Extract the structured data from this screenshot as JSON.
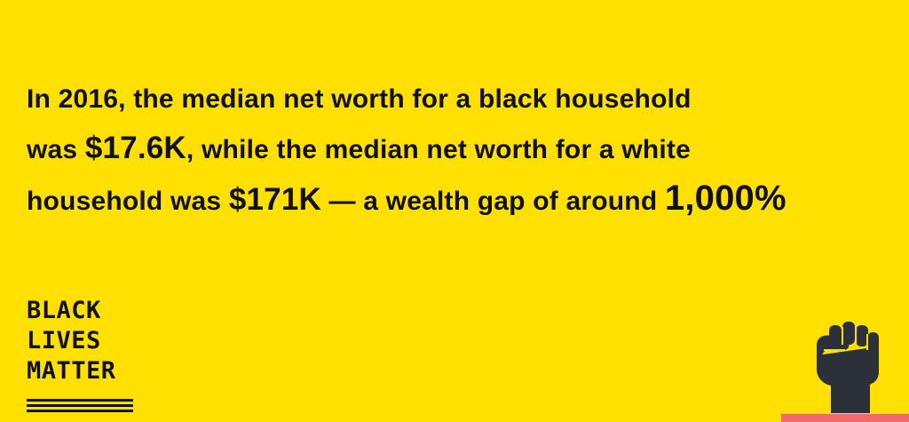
{
  "headline": {
    "line1": "In 2016, the median net worth for a black household",
    "line2_prefix": "was ",
    "black_value": "$17.6K",
    "line2_suffix": ", while the median net worth for a white",
    "line3_prefix": "household was ",
    "white_value": "$171K",
    "line3_middle": " — a wealth gap of around ",
    "gap_value": "1,000%"
  },
  "logo": {
    "line1": "BLACK",
    "line2": "LIVES",
    "line3": "MATTER"
  },
  "icons": {
    "fist": "raised-fist-icon"
  },
  "colors": {
    "background": "#FFE000",
    "text": "#111111",
    "fist": "#2B3137",
    "accent_bar": "#F26A6A"
  }
}
